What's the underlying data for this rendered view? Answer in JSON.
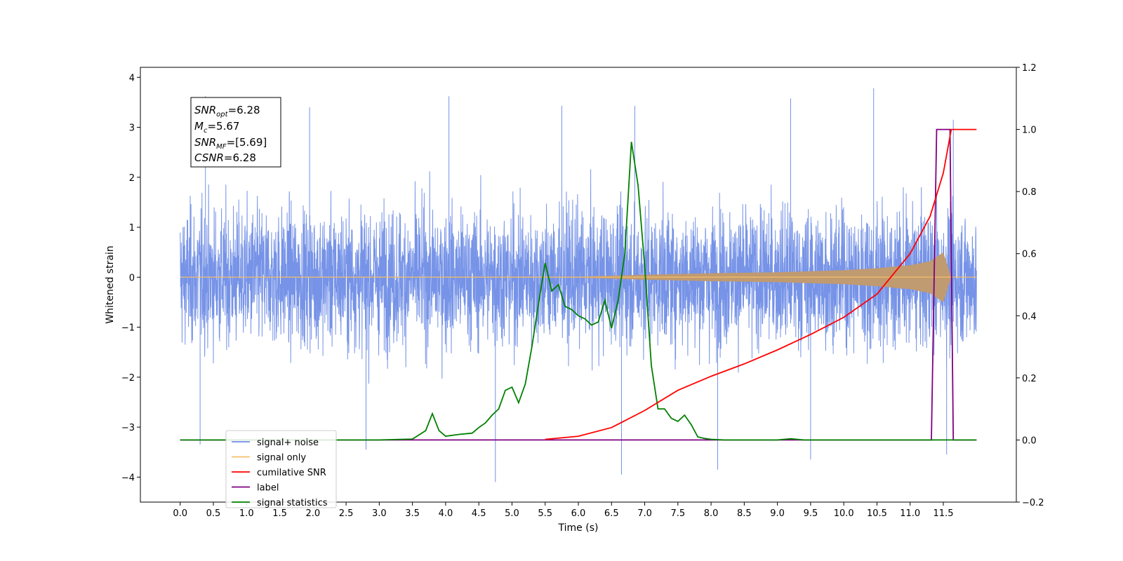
{
  "chart_data": {
    "type": "line",
    "xlabel": "Time (s)",
    "ylabel": "Whitened strain",
    "xlim": [
      -0.6,
      12.6
    ],
    "ylim_left": [
      -4.5,
      4.2
    ],
    "ylim_right": [
      -0.2,
      1.2
    ],
    "x_ticks": [
      0.0,
      0.5,
      1.0,
      1.5,
      2.0,
      2.5,
      3.0,
      3.5,
      4.0,
      4.5,
      5.0,
      5.5,
      6.0,
      6.5,
      7.0,
      7.5,
      8.0,
      8.5,
      9.0,
      9.5,
      10.0,
      10.5,
      11.0,
      11.5
    ],
    "x_tick_labels": [
      "0.0",
      "0.5",
      "1.0",
      "1.5",
      "2.0",
      "2.5",
      "3.0",
      "3.5",
      "4.0",
      "4.5",
      "5.0",
      "5.5",
      "6.0",
      "6.5",
      "7.0",
      "7.5",
      "8.0",
      "8.5",
      "9.0",
      "9.5",
      "10.0",
      "10.5",
      "11.0",
      "11.5"
    ],
    "y_left_ticks": [
      -4,
      -3,
      -2,
      -1,
      0,
      1,
      2,
      3,
      4
    ],
    "y_left_tick_labels": [
      "−4",
      "−3",
      "−2",
      "−1",
      "0",
      "1",
      "2",
      "3",
      "4"
    ],
    "y_right_ticks": [
      -0.2,
      0.0,
      0.2,
      0.4,
      0.6,
      0.8,
      1.0,
      1.2
    ],
    "y_right_tick_labels": [
      "−0.2",
      "0.0",
      "0.2",
      "0.4",
      "0.6",
      "0.8",
      "1.0",
      "1.2"
    ],
    "grid": false,
    "legend_placement": "lower-left",
    "legend": [
      {
        "label": "signal+ noise",
        "color": "#6f8de6"
      },
      {
        "label": "signal only",
        "color": "#f5bf6b"
      },
      {
        "label": "cumilative SNR",
        "color": "#ff0000"
      },
      {
        "label": "label",
        "color": "#800080"
      },
      {
        "label": "signal statistics",
        "color": "#008000"
      }
    ],
    "annotation": {
      "snr_opt": {
        "base": "SNR",
        "sub": "opt",
        "value": "=6.28"
      },
      "mc": {
        "base": "M",
        "sub": "c",
        "value": "=5.67"
      },
      "snr_mf": {
        "base": "SNR",
        "sub": "MF",
        "value": "=[5.69]"
      },
      "csnr": {
        "base": "CSNR",
        "value": "=6.28"
      }
    },
    "series": [
      {
        "name": "signal+ noise",
        "axis": "left",
        "color": "#6f8de6",
        "description_range": [
          -4.1,
          3.78
        ],
        "x_range": [
          0.0,
          12.0
        ],
        "typical_envelope": [
          -2.0,
          2.3
        ],
        "peaks": [
          [
            0.38,
            3.62
          ],
          [
            1.95,
            3.4
          ],
          [
            4.05,
            3.62
          ],
          [
            5.75,
            3.43
          ],
          [
            6.85,
            3.43
          ],
          [
            9.2,
            3.58
          ],
          [
            10.45,
            3.78
          ],
          [
            11.65,
            3.15
          ],
          [
            4.75,
            -4.1
          ],
          [
            6.65,
            -3.95
          ],
          [
            8.1,
            -3.85
          ],
          [
            9.5,
            -3.65
          ],
          [
            11.55,
            -3.55
          ],
          [
            2.8,
            -3.45
          ],
          [
            0.3,
            -3.35
          ]
        ]
      },
      {
        "name": "signal only",
        "axis": "left",
        "color": "#f5bf6b",
        "envelope": [
          [
            0.0,
            0.0
          ],
          [
            6.0,
            0.01
          ],
          [
            7.0,
            0.05
          ],
          [
            8.0,
            0.08
          ],
          [
            9.0,
            0.1
          ],
          [
            10.0,
            0.14
          ],
          [
            10.5,
            0.18
          ],
          [
            11.0,
            0.24
          ],
          [
            11.3,
            0.32
          ],
          [
            11.5,
            0.5
          ],
          [
            11.62,
            0.0
          ],
          [
            12.0,
            0.0
          ]
        ]
      },
      {
        "name": "cumilative SNR",
        "axis": "right",
        "color": "#ff0000",
        "x": [
          5.5,
          6.0,
          6.5,
          7.0,
          7.5,
          8.0,
          8.5,
          9.0,
          9.5,
          10.0,
          10.5,
          11.0,
          11.3,
          11.5,
          11.62,
          11.8,
          12.0
        ],
        "values": [
          0.002,
          0.012,
          0.04,
          0.095,
          0.16,
          0.205,
          0.245,
          0.29,
          0.34,
          0.395,
          0.47,
          0.6,
          0.72,
          0.86,
          1.0,
          1.0,
          1.0
        ]
      },
      {
        "name": "label",
        "axis": "right",
        "color": "#800080",
        "x": [
          0.0,
          11.32,
          11.4,
          11.6,
          11.65,
          12.0
        ],
        "values": [
          0.0,
          0.0,
          1.0,
          1.0,
          0.0,
          0.0
        ]
      },
      {
        "name": "signal statistics",
        "axis": "right",
        "color": "#008000",
        "x": [
          0.0,
          3.0,
          3.5,
          3.7,
          3.8,
          3.9,
          4.0,
          4.2,
          4.4,
          4.5,
          4.6,
          4.7,
          4.8,
          4.9,
          5.0,
          5.1,
          5.2,
          5.3,
          5.4,
          5.5,
          5.6,
          5.7,
          5.8,
          5.9,
          6.0,
          6.1,
          6.2,
          6.3,
          6.4,
          6.5,
          6.6,
          6.7,
          6.8,
          6.9,
          7.0,
          7.1,
          7.2,
          7.3,
          7.4,
          7.5,
          7.6,
          7.7,
          7.8,
          7.9,
          8.0,
          8.2,
          9.0,
          9.2,
          9.4,
          12.0
        ],
        "values": [
          0.0,
          0.0,
          0.003,
          0.03,
          0.085,
          0.03,
          0.012,
          0.018,
          0.022,
          0.04,
          0.055,
          0.08,
          0.1,
          0.16,
          0.17,
          0.12,
          0.18,
          0.3,
          0.44,
          0.57,
          0.48,
          0.5,
          0.43,
          0.42,
          0.4,
          0.39,
          0.37,
          0.38,
          0.45,
          0.36,
          0.45,
          0.6,
          0.96,
          0.82,
          0.56,
          0.24,
          0.1,
          0.1,
          0.07,
          0.06,
          0.08,
          0.05,
          0.01,
          0.005,
          0.002,
          0.0,
          0.0,
          0.004,
          0.0,
          0.0
        ]
      }
    ]
  }
}
